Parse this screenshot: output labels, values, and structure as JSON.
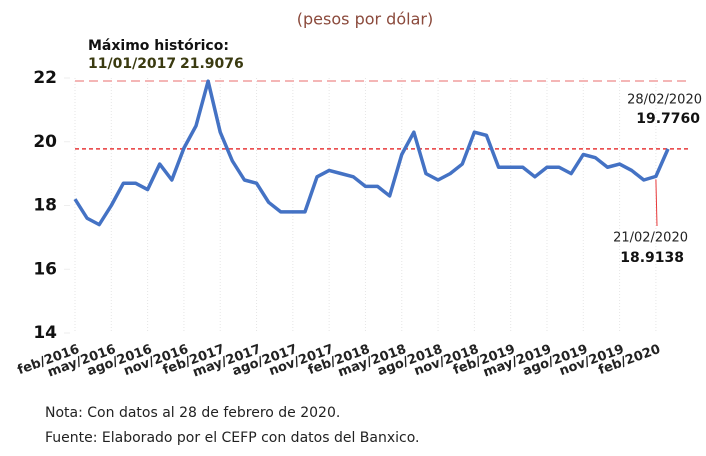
{
  "chart_data": {
    "type": "line",
    "subtitle": "(pesos por dólar)",
    "categories": [
      "feb/2016",
      null,
      null,
      "may/2016",
      null,
      null,
      "ago/2016",
      null,
      null,
      "nov/2016",
      null,
      null,
      "feb/2017",
      null,
      null,
      "may/2017",
      null,
      null,
      "ago/2017",
      null,
      null,
      "nov/2017",
      null,
      null,
      "feb/2018",
      null,
      null,
      "may/2018",
      null,
      null,
      "ago/2018",
      null,
      null,
      "nov/2018",
      null,
      null,
      "feb/2019",
      null,
      null,
      "may/2019",
      null,
      null,
      "ago/2019",
      null,
      null,
      "nov/2019",
      null,
      null,
      "feb/2020",
      null
    ],
    "values": [
      18.2,
      17.6,
      17.4,
      18.0,
      18.7,
      18.7,
      18.5,
      19.3,
      18.8,
      19.8,
      20.5,
      21.9,
      20.3,
      19.4,
      18.8,
      18.7,
      18.1,
      17.8,
      17.8,
      17.8,
      18.9,
      19.1,
      19.0,
      18.9,
      18.6,
      18.6,
      18.3,
      19.6,
      20.3,
      19.0,
      18.8,
      19.0,
      19.3,
      20.3,
      20.2,
      19.2,
      19.2,
      19.2,
      18.9,
      19.2,
      19.2,
      19.0,
      19.6,
      19.5,
      19.2,
      19.3,
      19.1,
      18.8,
      18.9138,
      19.776
    ],
    "color": "#4472c4",
    "ylim": [
      14,
      22
    ],
    "yticks": [
      14,
      16,
      18,
      20,
      22
    ],
    "grid": true,
    "annotations": [
      {
        "title": "Máximo histórico:",
        "date": "11/01/2017",
        "value": 21.9076,
        "color": "#f4b6b6"
      },
      {
        "date": "28/02/2020",
        "value": {
          "value": 19.776,
          "label": "19.7760"
        },
        "color": "#e8393a"
      },
      {
        "date": "21/02/2020",
        "value": 18.9138,
        "color": "#e8393a"
      }
    ],
    "notes": [
      "Nota: Con datos al 28 de febrero de 2020.",
      "Fuente: Elaborado por el CEFP con datos del Banxico."
    ]
  }
}
